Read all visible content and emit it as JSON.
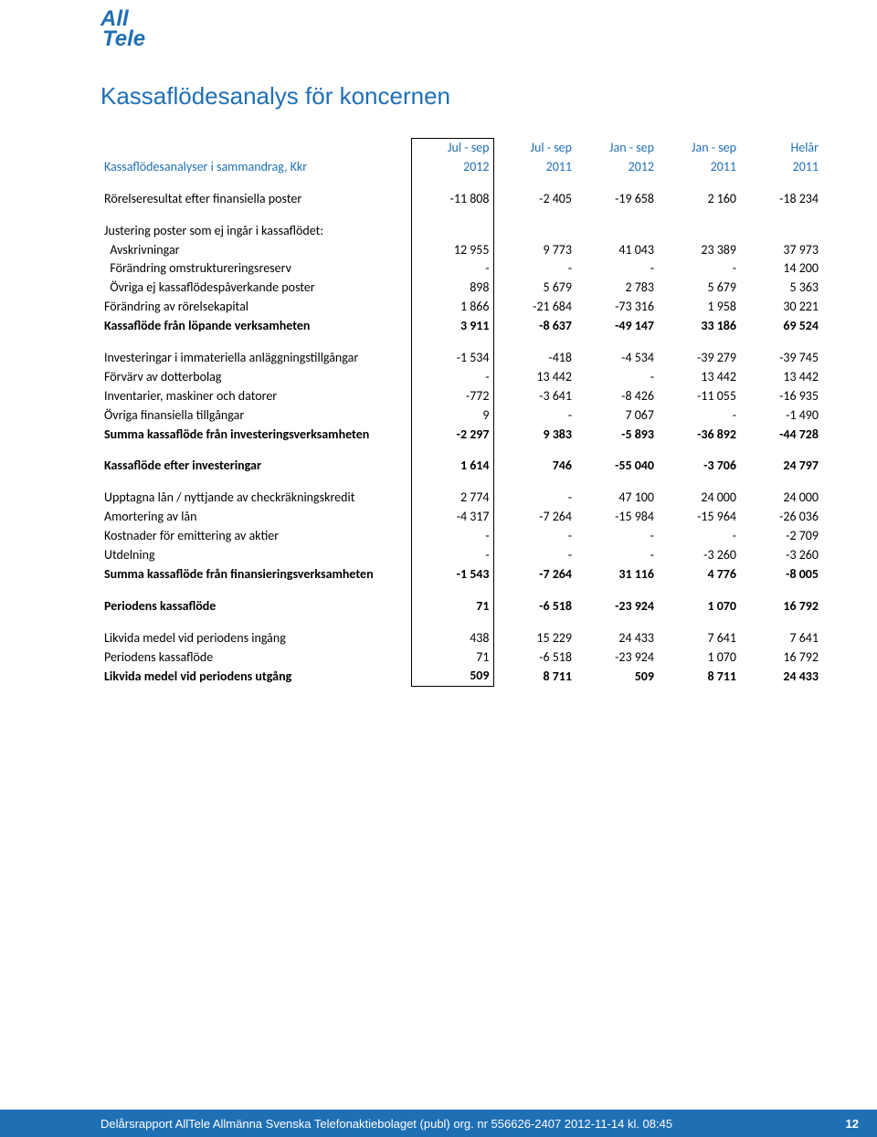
{
  "logo": {
    "line1": "All",
    "line2": "Tele"
  },
  "title": "Kassaflödesanalys för koncernen",
  "columns": {
    "c1_top": "Jul - sep",
    "c1_bot": "2012",
    "c2_top": "Jul - sep",
    "c2_bot": "2011",
    "c3_top": "Jan - sep",
    "c3_bot": "2012",
    "c4_top": "Jan - sep",
    "c4_bot": "2011",
    "c5_top": "Helår",
    "c5_bot": "2011"
  },
  "row_header_label": "Kassaflödesanalyser i sammandrag, Kkr",
  "rows": [
    {
      "label": "Rörelseresultat efter finansiella poster",
      "v": [
        "-11 808",
        "-2 405",
        "-19 658",
        "2 160",
        "-18 234"
      ],
      "bold": false,
      "spacer_after": true
    },
    {
      "label": "Justering poster som ej ingår i kassaflödet:",
      "v": [
        "",
        "",
        "",
        "",
        ""
      ],
      "bold": false
    },
    {
      "label": "  Avskrivningar",
      "v": [
        "12 955",
        "9 773",
        "41 043",
        "23 389",
        "37 973"
      ]
    },
    {
      "label": "  Förändring omstruktureringsreserv",
      "v": [
        "-",
        "-",
        "-",
        "-",
        "14 200"
      ]
    },
    {
      "label": "  Övriga ej kassaflödespåverkande poster",
      "v": [
        "898",
        "5 679",
        "2 783",
        "5 679",
        "5 363"
      ]
    },
    {
      "label": "Förändring av rörelsekapital",
      "v": [
        "1 866",
        "-21 684",
        "-73 316",
        "1 958",
        "30 221"
      ]
    },
    {
      "label": "Kassaflöde från löpande verksamheten",
      "v": [
        "3 911",
        "-8 637",
        "-49 147",
        "33 186",
        "69 524"
      ],
      "bold": true,
      "spacer_after": true
    },
    {
      "label": "Investeringar i immateriella anläggningstillgångar",
      "v": [
        "-1 534",
        "-418",
        "-4 534",
        "-39 279",
        "-39 745"
      ]
    },
    {
      "label": "Förvärv av dotterbolag",
      "v": [
        "-",
        "13 442",
        "-",
        "13 442",
        "13 442"
      ]
    },
    {
      "label": "Inventarier, maskiner och datorer",
      "v": [
        "-772",
        "-3 641",
        "-8 426",
        "-11 055",
        "-16 935"
      ]
    },
    {
      "label": "Övriga finansiella tillgångar",
      "v": [
        "9",
        "-",
        "7 067",
        "-",
        "-1 490"
      ]
    },
    {
      "label": "Summa kassaflöde från investeringsverksamheten",
      "v": [
        "-2 297",
        "9 383",
        "-5 893",
        "-36 892",
        "-44 728"
      ],
      "bold": true,
      "spacer_after": true
    },
    {
      "label": "Kassaflöde efter investeringar",
      "v": [
        "1 614",
        "746",
        "-55 040",
        "-3 706",
        "24 797"
      ],
      "bold": true,
      "spacer_after": true
    },
    {
      "label": "Upptagna lån / nyttjande av checkräkningskredit",
      "v": [
        "2 774",
        "-",
        "47 100",
        "24 000",
        "24 000"
      ]
    },
    {
      "label": "Amortering av lån",
      "v": [
        "-4 317",
        "-7 264",
        "-15 984",
        "-15 964",
        "-26 036"
      ]
    },
    {
      "label": "Kostnader för emittering av aktier",
      "v": [
        "-",
        "-",
        "-",
        "-",
        "-2 709"
      ]
    },
    {
      "label": "Utdelning",
      "v": [
        "-",
        "-",
        "-",
        "-3 260",
        "-3 260"
      ]
    },
    {
      "label": "Summa kassaflöde från finansieringsverksamheten",
      "v": [
        "-1 543",
        "-7 264",
        "31 116",
        "4 776",
        "-8 005"
      ],
      "bold": true,
      "spacer_after": true
    },
    {
      "label": "Periodens kassaflöde",
      "v": [
        "71",
        "-6 518",
        "-23 924",
        "1 070",
        "16 792"
      ],
      "bold": true,
      "spacer_after": true
    },
    {
      "label": "Likvida medel vid periodens ingång",
      "v": [
        "438",
        "15 229",
        "24 433",
        "7 641",
        "7 641"
      ]
    },
    {
      "label": "Periodens kassaflöde",
      "v": [
        "71",
        "-6 518",
        "-23 924",
        "1 070",
        "16 792"
      ]
    },
    {
      "label": "Likvida medel vid periodens utgång",
      "v": [
        "509",
        "8 711",
        "509",
        "8 711",
        "24 433"
      ],
      "bold": true,
      "last": true
    }
  ],
  "footer": {
    "text": "Delårsrapport AllTele Allmänna Svenska Telefonaktiebolaget (publ) org. nr 556626-2407 2012-11-14 kl. 08:45",
    "page": "12"
  },
  "colors": {
    "brand": "#1f6fb5",
    "text": "#000000",
    "footer_bg": "#1f6fb5",
    "footer_text": "#ffffff"
  }
}
